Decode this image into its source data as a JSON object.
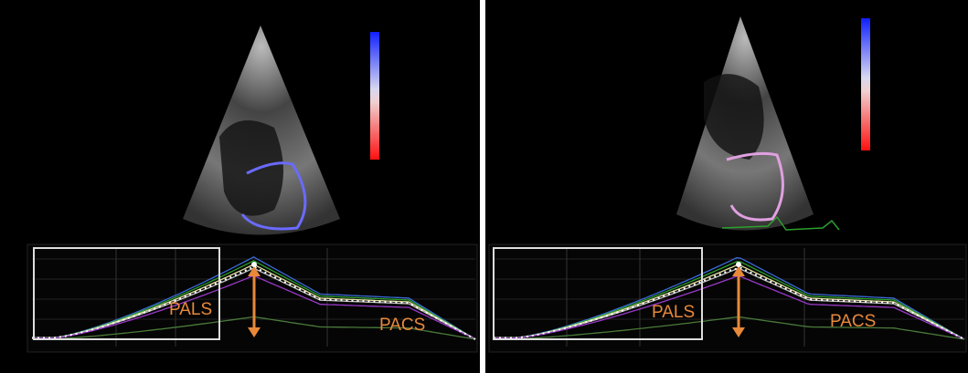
{
  "panels": [
    {
      "labels": {
        "reservoir": "PALS",
        "contraction": "PACS"
      }
    },
    {
      "labels": {
        "reservoir": "PALS",
        "contraction": "PACS"
      }
    }
  ]
}
